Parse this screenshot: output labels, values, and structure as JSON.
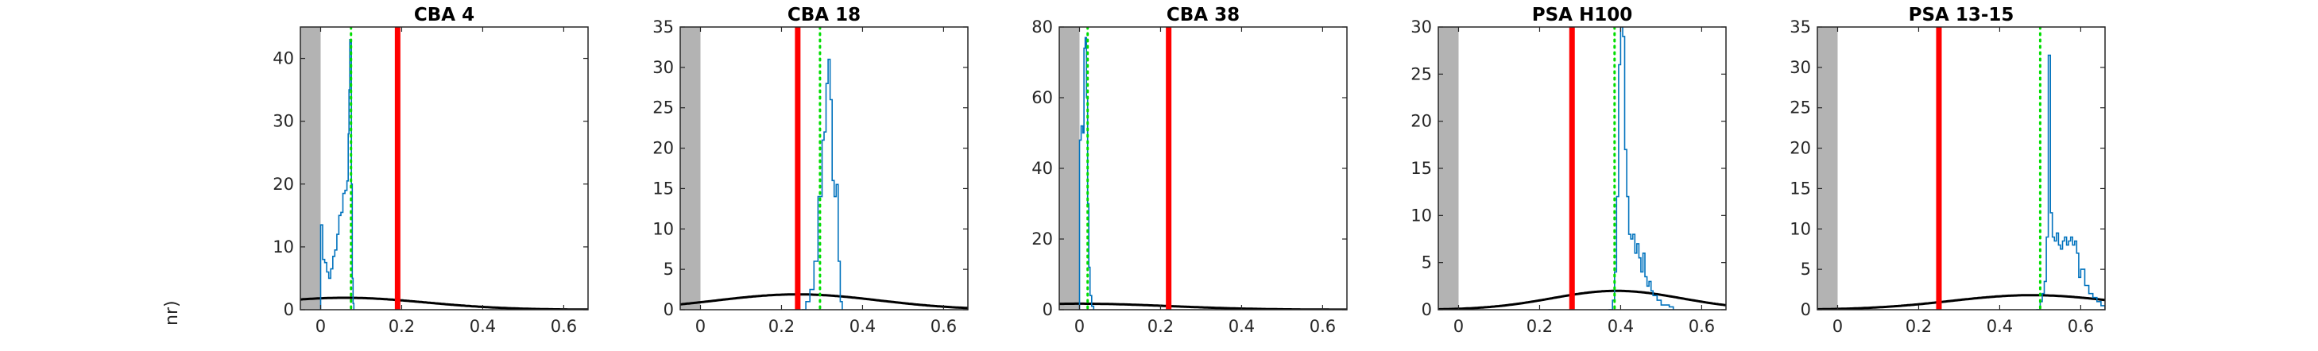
{
  "stray_label": "nr)",
  "colors": {
    "excluded_region": "#b3b3b3",
    "distribution": "#0072bd",
    "threshold": "#ff0000",
    "reference": "#00dd00",
    "fit_curve": "#000000",
    "axes": "#262626"
  },
  "chart_data": [
    {
      "type": "line",
      "title": "CBA 4",
      "xlim": [
        -0.05,
        0.66
      ],
      "ylim": [
        0,
        45
      ],
      "xticks": [
        0,
        0.2,
        0.4,
        0.6
      ],
      "yticks": [
        0,
        10,
        20,
        30,
        40
      ],
      "shaded_x": [
        -0.05,
        0.0
      ],
      "threshold_x": 0.19,
      "reference_x": 0.075,
      "fit_curve": {
        "peak_x": 0.06,
        "peak_y": 1.9,
        "width": 0.2
      },
      "histogram": {
        "x": [
          0.0,
          0.0,
          0.005,
          0.01,
          0.015,
          0.02,
          0.025,
          0.03,
          0.035,
          0.04,
          0.045,
          0.05,
          0.055,
          0.06,
          0.065,
          0.068,
          0.07,
          0.072,
          0.074,
          0.076,
          0.078,
          0.08,
          0.082
        ],
        "y": [
          0,
          13.5,
          8.0,
          7.5,
          6.0,
          5.0,
          6.5,
          8.5,
          9.5,
          12.0,
          15.0,
          15.5,
          18.5,
          19.0,
          20.5,
          28.0,
          35.0,
          43.0,
          42.5,
          20.0,
          5.0,
          1.0,
          0
        ]
      }
    },
    {
      "type": "line",
      "title": "CBA 18",
      "xlim": [
        -0.05,
        0.66
      ],
      "ylim": [
        0,
        35
      ],
      "xticks": [
        0,
        0.2,
        0.4,
        0.6
      ],
      "yticks": [
        0,
        5,
        10,
        15,
        20,
        25,
        30,
        35
      ],
      "shaded_x": [
        -0.05,
        0.0
      ],
      "threshold_x": 0.24,
      "reference_x": 0.295,
      "fit_curve": {
        "peak_x": 0.24,
        "peak_y": 1.9,
        "width": 0.2
      },
      "histogram": {
        "x": [
          0.25,
          0.26,
          0.27,
          0.28,
          0.29,
          0.3,
          0.305,
          0.31,
          0.315,
          0.32,
          0.325,
          0.33,
          0.335,
          0.34,
          0.345,
          0.35
        ],
        "y": [
          0,
          1.0,
          2.5,
          6.0,
          14.0,
          21.0,
          22.0,
          28.0,
          31.0,
          26.0,
          16.0,
          14.0,
          15.5,
          6.0,
          1.0,
          0
        ]
      }
    },
    {
      "type": "line",
      "title": "CBA 38",
      "xlim": [
        -0.05,
        0.66
      ],
      "ylim": [
        0,
        80
      ],
      "xticks": [
        0,
        0.2,
        0.4,
        0.6
      ],
      "yticks": [
        0,
        20,
        40,
        60,
        80
      ],
      "shaded_x": [
        -0.05,
        0.0
      ],
      "threshold_x": 0.22,
      "reference_x": 0.02,
      "fit_curve": {
        "peak_x": 0.0,
        "peak_y": 1.7,
        "width": 0.22
      },
      "histogram": {
        "x": [
          0.0,
          0.0,
          0.004,
          0.008,
          0.011,
          0.014,
          0.017,
          0.02,
          0.023,
          0.026,
          0.03,
          0.035
        ],
        "y": [
          0,
          48.0,
          52.0,
          50.0,
          74.0,
          77.0,
          60.0,
          30.0,
          12.0,
          4.0,
          1.0,
          0
        ]
      }
    },
    {
      "type": "line",
      "title": "PSA H100",
      "xlim": [
        -0.05,
        0.66
      ],
      "ylim": [
        0,
        30
      ],
      "xticks": [
        0,
        0.2,
        0.4,
        0.6
      ],
      "yticks": [
        0,
        5,
        10,
        15,
        20,
        25,
        30
      ],
      "shaded_x": [
        -0.05,
        0.0
      ],
      "threshold_x": 0.28,
      "reference_x": 0.385,
      "fit_curve": {
        "peak_x": 0.39,
        "peak_y": 2.0,
        "width": 0.16
      },
      "histogram": {
        "x": [
          0.37,
          0.38,
          0.385,
          0.39,
          0.395,
          0.4,
          0.405,
          0.41,
          0.415,
          0.42,
          0.425,
          0.43,
          0.435,
          0.44,
          0.445,
          0.45,
          0.455,
          0.46,
          0.465,
          0.47,
          0.475,
          0.48,
          0.49,
          0.5,
          0.51,
          0.52,
          0.53
        ],
        "y": [
          0,
          1.0,
          4.0,
          12.0,
          26.0,
          30.0,
          29.0,
          17.0,
          12.0,
          8.0,
          7.5,
          8.0,
          6.0,
          7.0,
          5.5,
          4.0,
          6.0,
          3.5,
          2.5,
          3.0,
          2.0,
          1.5,
          1.0,
          0.5,
          0.5,
          0.3,
          0
        ]
      }
    },
    {
      "type": "line",
      "title": "PSA 13-15",
      "xlim": [
        -0.05,
        0.66
      ],
      "ylim": [
        0,
        35
      ],
      "xticks": [
        0,
        0.2,
        0.4,
        0.6
      ],
      "yticks": [
        0,
        5,
        10,
        15,
        20,
        25,
        30,
        35
      ],
      "shaded_x": [
        -0.05,
        0.0
      ],
      "threshold_x": 0.25,
      "reference_x": 0.5,
      "fit_curve": {
        "peak_x": 0.48,
        "peak_y": 1.8,
        "width": 0.2
      },
      "histogram": {
        "x": [
          0.49,
          0.5,
          0.505,
          0.51,
          0.515,
          0.52,
          0.525,
          0.53,
          0.535,
          0.54,
          0.545,
          0.55,
          0.555,
          0.56,
          0.565,
          0.57,
          0.575,
          0.58,
          0.585,
          0.59,
          0.595,
          0.6,
          0.61,
          0.62,
          0.63,
          0.64,
          0.65,
          0.66
        ],
        "y": [
          0,
          1.0,
          2.0,
          3.5,
          9.0,
          31.5,
          12.0,
          9.0,
          8.5,
          9.5,
          8.0,
          7.5,
          8.5,
          9.0,
          8.0,
          8.5,
          9.0,
          8.0,
          8.5,
          7.0,
          4.0,
          5.0,
          3.0,
          2.0,
          1.5,
          1.0,
          0.5,
          0
        ]
      }
    }
  ]
}
